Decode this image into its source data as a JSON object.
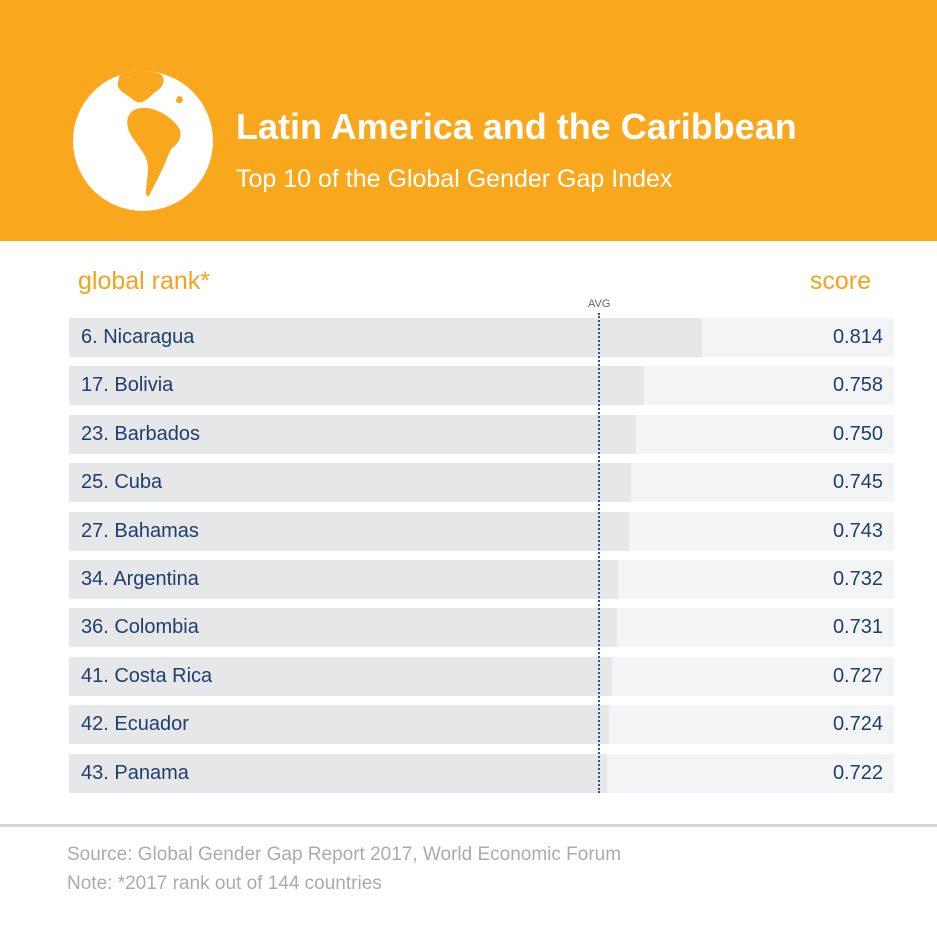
{
  "header": {
    "title": "Latin America and the Caribbean",
    "subtitle": "Top 10 of the Global Gender Gap Index",
    "icon": "globe-icon"
  },
  "columns": {
    "rank": "global rank*",
    "score": "score",
    "avg": "AVG"
  },
  "chart_data": {
    "type": "bar",
    "orientation": "horizontal",
    "categories": [
      "6. Nicaragua",
      "17. Bolivia",
      "23. Barbados",
      "25. Cuba",
      "27. Bahamas",
      "34. Argentina",
      "36. Colombia",
      "41. Costa Rica",
      "42. Ecuador",
      "43. Panama"
    ],
    "values": [
      0.814,
      0.758,
      0.75,
      0.745,
      0.743,
      0.732,
      0.731,
      0.727,
      0.724,
      0.722
    ],
    "value_labels": [
      "0.814",
      "0.758",
      "0.750",
      "0.745",
      "0.743",
      "0.732",
      "0.731",
      "0.727",
      "0.724",
      "0.722"
    ],
    "avg_value": 0.713,
    "xlim": [
      0.2,
      1.0
    ]
  },
  "footer": {
    "source": "Source: Global Gender Gap Report 2017,  World Economic Forum",
    "note": "Note: *2017 rank out of 144 countries"
  },
  "colors": {
    "header_bg": "#F9A71C",
    "accent_text": "#F5A21C",
    "row_text": "#1F3E6E",
    "avg_line": "#2C5691"
  }
}
